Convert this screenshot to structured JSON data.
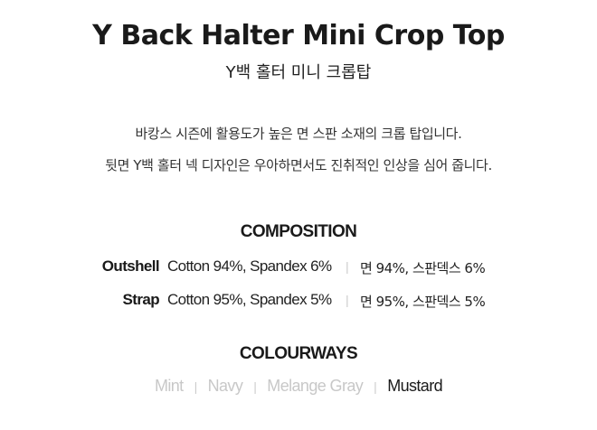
{
  "product": {
    "title": "Y Back Halter Mini Crop Top",
    "subtitle": "Y백 홀터 미니 크롭탑",
    "description": [
      "바캉스 시즌에 활용도가 높은 면 스판 소재의 크롭 탑입니다.",
      "뒷면 Y백 홀터 넥 디자인은 우아하면서도 진취적인 인상을 심어 줍니다."
    ]
  },
  "composition": {
    "heading": "COMPOSITION",
    "rows": [
      {
        "label": "Outshell",
        "en": "Cotton 94%, Spandex 6%",
        "ko": "면 94%, 스판덱스 6%"
      },
      {
        "label": "Strap",
        "en": "Cotton 95%, Spandex 5%",
        "ko": "면 95%, 스판덱스 5%"
      }
    ],
    "separator": "|"
  },
  "colourways": {
    "heading": "COLOURWAYS",
    "items": [
      {
        "label": "Mint",
        "active": false
      },
      {
        "label": "Navy",
        "active": false
      },
      {
        "label": "Melange Gray",
        "active": false
      },
      {
        "label": "Mustard",
        "active": true
      }
    ],
    "separator": "|",
    "active_color": "#1a1a1a",
    "inactive_color": "#c8c8c8"
  }
}
